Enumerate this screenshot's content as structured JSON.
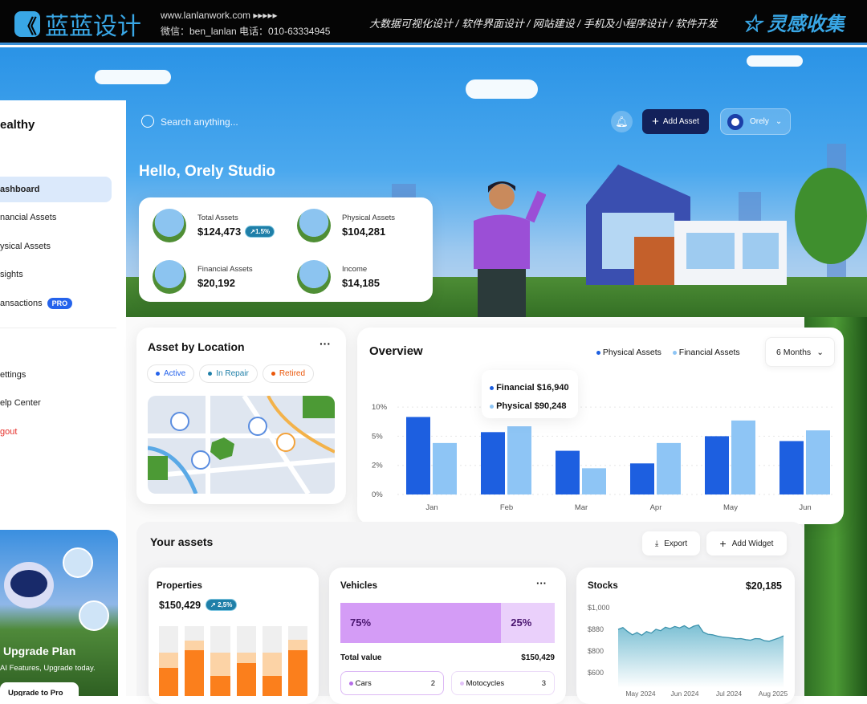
{
  "banner": {
    "logo_text": "蓝蓝设计",
    "website": "www.lanlanwork.com  ▸▸▸▸▸",
    "contact": "微信：ben_lanlan    电话：010-63334945",
    "services": "大数据可视化设计  /  软件界面设计  /  网站建设  /  手机及小程序设计  /  软件开发",
    "inspiration": "灵感收集"
  },
  "sidebar": {
    "brand": "ealthy",
    "items": [
      {
        "label": "ashboard",
        "active": true
      },
      {
        "label": "nancial Assets"
      },
      {
        "label": "ysical Assets"
      },
      {
        "label": "sights"
      },
      {
        "label": "ansactions",
        "badge": "PRO"
      }
    ],
    "bottom_items": [
      {
        "label": "ettings"
      },
      {
        "label": "elp Center"
      },
      {
        "label": "gout",
        "color": "#e5312b"
      }
    ]
  },
  "upgrade": {
    "title": "Upgrade Plan",
    "subtitle": "AI Features, Upgrade today.",
    "button": "Upgrade to Pro"
  },
  "header": {
    "search_placeholder": "Search anything...",
    "add_asset": "Add Asset",
    "user": "Orely",
    "greeting": "Hello, Orely Studio"
  },
  "stats": [
    {
      "label": "Total Assets",
      "value": "$124,473",
      "badge": "↗1.5%"
    },
    {
      "label": "Physical Assets",
      "value": "$104,281"
    },
    {
      "label": "Financial Assets",
      "value": "$20,192"
    },
    {
      "label": "Income",
      "value": "$14,185"
    }
  ],
  "location": {
    "title": "Asset by Location",
    "filters": [
      {
        "label": "Active",
        "color": "#2563eb"
      },
      {
        "label": "In Repair",
        "color": "#1f7fa8"
      },
      {
        "label": "Retired",
        "color": "#ea580c"
      }
    ]
  },
  "overview": {
    "title": "Overview",
    "range": "6 Months",
    "tooltip": [
      {
        "label": "Financial $16,940",
        "color": "#1d5fe0"
      },
      {
        "label": "Physical $90,248",
        "color": "#8ec5f5"
      }
    ]
  },
  "chart_data": {
    "type": "bar",
    "categories": [
      "Jan",
      "Feb",
      "Mar",
      "Apr",
      "May",
      "Jun"
    ],
    "yticks": [
      "0%",
      "2%",
      "5%",
      "10%"
    ],
    "ytick_values": [
      0,
      2,
      5,
      10
    ],
    "series": [
      {
        "name": "Physical Assets",
        "color": "#1d5fe0",
        "values": [
          8.3,
          5.7,
          3.5,
          2.2,
          5,
          4.5
        ]
      },
      {
        "name": "Financial Assets",
        "color": "#8ec5f5",
        "values": [
          4.3,
          6.7,
          1.8,
          4.3,
          7.7,
          6
        ]
      }
    ],
    "legend": "top-right",
    "grid": true
  },
  "assets": {
    "title": "Your assets",
    "export": "Export",
    "add_widget": "Add Widget",
    "properties": {
      "title": "Properties",
      "value": "$150,429",
      "badge": "↗ 2,5%",
      "bars": [
        {
          "dark": 40,
          "light": 62
        },
        {
          "dark": 65,
          "light": 79
        },
        {
          "dark": 29,
          "light": 62
        },
        {
          "dark": 47,
          "light": 62
        },
        {
          "dark": 29,
          "light": 62
        },
        {
          "dark": 66,
          "light": 80
        }
      ]
    },
    "vehicles": {
      "title": "Vehicles",
      "split": [
        75,
        25
      ],
      "split_labels": [
        "75%",
        "25%"
      ],
      "total_label": "Total value",
      "total": "$150,429",
      "types": [
        {
          "label": "Cars",
          "count": "2"
        },
        {
          "label": "Motocycles",
          "count": "3"
        }
      ]
    },
    "stocks": {
      "title": "Stocks",
      "value": "$20,185",
      "yticks": [
        "$1,000",
        "$880",
        "$800",
        "$600"
      ],
      "xticks": [
        "May 2024",
        "Jun 2024",
        "Jul 2024",
        "Aug 2025"
      ],
      "values": [
        880,
        890,
        872,
        860,
        868,
        858,
        872,
        866,
        880,
        875,
        892,
        884,
        896,
        888,
        900,
        884,
        898,
        904,
        870,
        862,
        860,
        855,
        852,
        850,
        848,
        845,
        846,
        842,
        840,
        846,
        845,
        838,
        836,
        842,
        848,
        856
      ]
    }
  },
  "colors": {
    "accent": "#2563eb",
    "navy": "#13215a",
    "orange": "#fb7f1c",
    "purple": "#d49cf6"
  }
}
